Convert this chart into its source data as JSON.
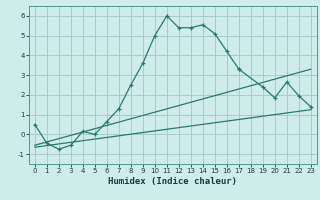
{
  "xlabel": "Humidex (Indice chaleur)",
  "ylabel": "",
  "background_color": "#ceecea",
  "grid_color": "#a0c8c4",
  "line_color": "#2a7a6a",
  "xlim": [
    -0.5,
    23.5
  ],
  "ylim": [
    -1.5,
    6.5
  ],
  "xticks": [
    0,
    1,
    2,
    3,
    4,
    5,
    6,
    7,
    8,
    9,
    10,
    11,
    12,
    13,
    14,
    15,
    16,
    17,
    18,
    19,
    20,
    21,
    22,
    23
  ],
  "yticks": [
    -1,
    0,
    1,
    2,
    3,
    4,
    5,
    6
  ],
  "series0_x": [
    0,
    1,
    2,
    3,
    4,
    5,
    6,
    7,
    8,
    9,
    10,
    11,
    12,
    13,
    14,
    15,
    16,
    17
  ],
  "series0_y": [
    0.5,
    -0.45,
    -0.75,
    -0.55,
    0.15,
    0.0,
    0.65,
    1.3,
    2.5,
    3.6,
    5.0,
    6.0,
    5.4,
    5.4,
    5.55,
    5.1,
    4.2,
    3.3
  ],
  "series1_x": [
    17,
    19,
    20,
    21,
    22,
    23
  ],
  "series1_y": [
    3.3,
    2.4,
    1.85,
    2.65,
    1.95,
    1.4
  ],
  "line2_x": [
    0,
    23
  ],
  "line2_y": [
    -0.55,
    3.3
  ],
  "line3_x": [
    0,
    23
  ],
  "line3_y": [
    -0.65,
    1.25
  ]
}
